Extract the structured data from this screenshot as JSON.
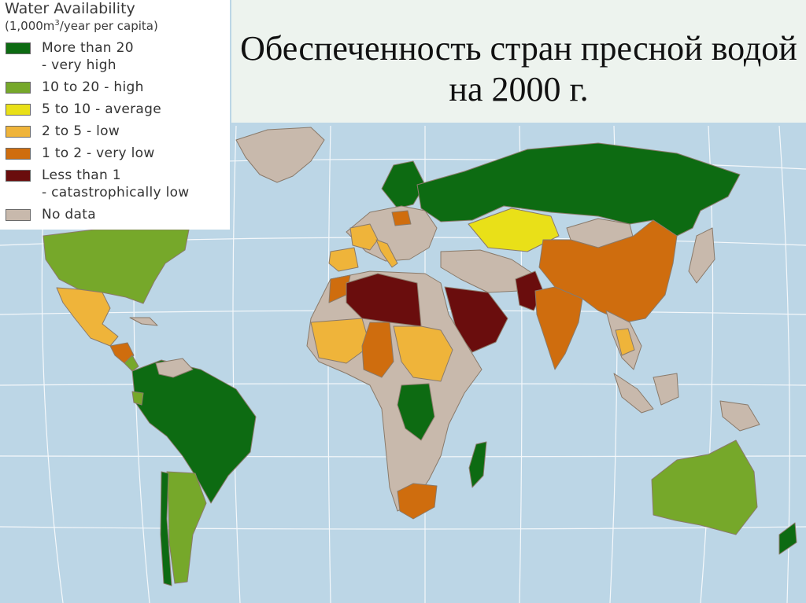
{
  "title": "Обеспеченность стран пресной водой на 2000 г.",
  "legend": {
    "title": "Water Availability",
    "subtitle_pre": "(1,000m",
    "subtitle_sup": "3",
    "subtitle_post": "/year per capita)",
    "items": [
      {
        "line1": "More than 20",
        "line2": "- very high",
        "color": "#0d6b12"
      },
      {
        "line1": "10 to 20 - high",
        "line2": "",
        "color": "#76a82a"
      },
      {
        "line1": "5 to 10 - average",
        "line2": "",
        "color": "#e9e018"
      },
      {
        "line1": "2 to 5 - low",
        "line2": "",
        "color": "#efb43a"
      },
      {
        "line1": "1 to 2 - very low",
        "line2": "",
        "color": "#cf6d0e"
      },
      {
        "line1": "Less than 1",
        "line2": "- catastrophically low",
        "color": "#6a0d0d"
      },
      {
        "line1": "No data",
        "line2": "",
        "color": "#c8b9ac"
      }
    ]
  },
  "colors": {
    "ocean": "#bcd6e6",
    "grid": "#ffffff",
    "no_data": "#c8b9ac",
    "very_high": "#0d6b12",
    "high": "#76a82a",
    "average": "#e9e018",
    "low": "#efb43a",
    "very_low": "#cf6d0e",
    "catastrophic": "#6a0d0d"
  }
}
